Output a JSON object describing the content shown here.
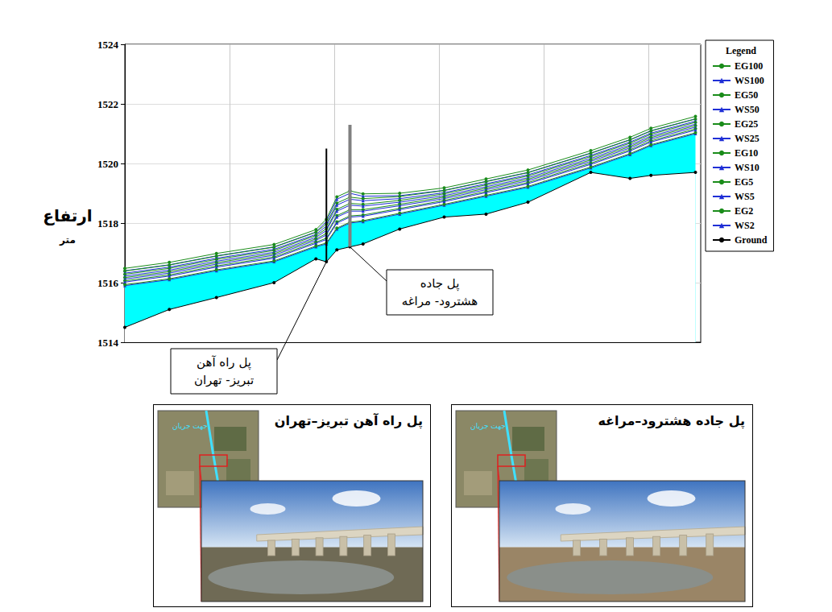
{
  "chart_data": {
    "type": "line",
    "ylabel": "ارتفاع",
    "ylabel_unit": "متر",
    "legend_title": "Legend",
    "legend": "right",
    "grid": true,
    "tick_labels": "y",
    "xlim": [
      0,
      1100
    ],
    "xticks": [
      0,
      200,
      400,
      600,
      800,
      1000
    ],
    "ylim": [
      1514,
      1524
    ],
    "yticks": [
      1514,
      1516,
      1518,
      1520,
      1522,
      1524
    ],
    "x": [
      0,
      85,
      175,
      285,
      365,
      385,
      405,
      430,
      455,
      525,
      610,
      690,
      770,
      890,
      965,
      1005,
      1090
    ],
    "series": [
      {
        "name": "EG100",
        "type": "line",
        "color": "#1a8c1a",
        "marker": "circle",
        "values": [
          1516.48,
          1516.68,
          1516.98,
          1517.28,
          1517.78,
          1518.13,
          1518.88,
          1519.08,
          1518.98,
          1519.0,
          1519.18,
          1519.48,
          1519.78,
          1520.43,
          1520.88,
          1521.18,
          1521.58
        ]
      },
      {
        "name": "WS100",
        "type": "line",
        "color": "#1f2fd6",
        "marker": "triangle",
        "values": [
          1516.4,
          1516.6,
          1516.9,
          1517.2,
          1517.7,
          1518.05,
          1518.8,
          1519.0,
          1518.9,
          1518.92,
          1519.1,
          1519.4,
          1519.7,
          1520.35,
          1520.8,
          1521.1,
          1521.5
        ]
      },
      {
        "name": "EG50",
        "type": "line",
        "color": "#1a8c1a",
        "marker": "circle",
        "values": [
          1516.39,
          1516.59,
          1516.89,
          1517.19,
          1517.69,
          1517.97,
          1518.67,
          1518.87,
          1518.82,
          1518.89,
          1519.09,
          1519.39,
          1519.69,
          1520.34,
          1520.79,
          1521.09,
          1521.49
        ]
      },
      {
        "name": "WS50",
        "type": "line",
        "color": "#1f2fd6",
        "marker": "triangle",
        "values": [
          1516.32,
          1516.52,
          1516.82,
          1517.12,
          1517.62,
          1517.9,
          1518.6,
          1518.8,
          1518.75,
          1518.82,
          1519.02,
          1519.32,
          1519.62,
          1520.27,
          1520.72,
          1521.02,
          1521.42
        ]
      },
      {
        "name": "EG25",
        "type": "line",
        "color": "#1a8c1a",
        "marker": "circle",
        "values": [
          1516.28,
          1516.48,
          1516.78,
          1517.08,
          1517.58,
          1517.81,
          1518.46,
          1518.66,
          1518.63,
          1518.76,
          1518.98,
          1519.28,
          1519.58,
          1520.23,
          1520.68,
          1520.98,
          1521.38
        ]
      },
      {
        "name": "WS25",
        "type": "line",
        "color": "#1f2fd6",
        "marker": "triangle",
        "values": [
          1516.22,
          1516.42,
          1516.72,
          1517.02,
          1517.52,
          1517.75,
          1518.4,
          1518.6,
          1518.57,
          1518.7,
          1518.92,
          1519.22,
          1519.52,
          1520.17,
          1520.62,
          1520.92,
          1521.32
        ]
      },
      {
        "name": "EG10",
        "type": "line",
        "color": "#1a8c1a",
        "marker": "circle",
        "values": [
          1516.17,
          1516.37,
          1516.67,
          1516.97,
          1517.47,
          1517.65,
          1518.25,
          1518.45,
          1518.45,
          1518.63,
          1518.87,
          1519.17,
          1519.47,
          1520.12,
          1520.57,
          1520.87,
          1521.27
        ]
      },
      {
        "name": "WS10",
        "type": "line",
        "color": "#1f2fd6",
        "marker": "triangle",
        "values": [
          1516.12,
          1516.32,
          1516.62,
          1516.92,
          1517.42,
          1517.6,
          1518.2,
          1518.4,
          1518.4,
          1518.58,
          1518.82,
          1519.12,
          1519.42,
          1520.07,
          1520.52,
          1520.82,
          1521.22
        ]
      },
      {
        "name": "EG5",
        "type": "line",
        "color": "#1a8c1a",
        "marker": "circle",
        "values": [
          1516.06,
          1516.26,
          1516.56,
          1516.86,
          1517.36,
          1517.49,
          1518.04,
          1518.24,
          1518.27,
          1518.49,
          1518.76,
          1519.06,
          1519.36,
          1520.01,
          1520.46,
          1520.76,
          1521.16
        ]
      },
      {
        "name": "WS5",
        "type": "line",
        "color": "#1f2fd6",
        "marker": "triangle",
        "values": [
          1516.02,
          1516.22,
          1516.52,
          1516.82,
          1517.32,
          1517.45,
          1518.0,
          1518.2,
          1518.23,
          1518.45,
          1518.72,
          1519.02,
          1519.32,
          1519.97,
          1520.42,
          1520.72,
          1521.12
        ]
      },
      {
        "name": "EG2",
        "type": "line",
        "color": "#1a8c1a",
        "marker": "circle",
        "values": [
          1515.93,
          1516.13,
          1516.43,
          1516.73,
          1517.23,
          1517.33,
          1517.83,
          1518.03,
          1518.08,
          1518.33,
          1518.63,
          1518.93,
          1519.23,
          1519.88,
          1520.33,
          1520.63,
          1521.03
        ]
      },
      {
        "name": "WS2",
        "type": "area",
        "color": "#1f2fd6",
        "marker": "triangle",
        "values": [
          1515.9,
          1516.1,
          1516.4,
          1516.7,
          1517.2,
          1517.3,
          1517.8,
          1518.0,
          1518.05,
          1518.3,
          1518.6,
          1518.9,
          1519.2,
          1519.85,
          1520.3,
          1520.6,
          1521.0
        ]
      },
      {
        "name": "Ground",
        "type": "area",
        "color": "#000000",
        "marker": "circle",
        "values": [
          1514.5,
          1515.1,
          1515.5,
          1516.0,
          1516.8,
          1516.7,
          1517.1,
          1517.2,
          1517.3,
          1517.8,
          1518.2,
          1518.3,
          1518.7,
          1519.7,
          1519.5,
          1519.6,
          1519.7
        ]
      }
    ],
    "bridges": [
      {
        "label": "پل راه آهن تبریز- تهران",
        "x": 385,
        "bottom": 1516.7,
        "top": 1520.5,
        "color": "#000000"
      },
      {
        "label": "پل جاده هشترود- مراغه",
        "x": 430,
        "bottom": 1517.2,
        "top": 1521.3,
        "color": "#808080"
      }
    ]
  },
  "photos": [
    {
      "title": "پل راه آهن تبریز–تهران",
      "map_label": "جهت جریان"
    },
    {
      "title": "پل جاده هشترود–مراغه",
      "map_label": "جهت جریان"
    }
  ]
}
